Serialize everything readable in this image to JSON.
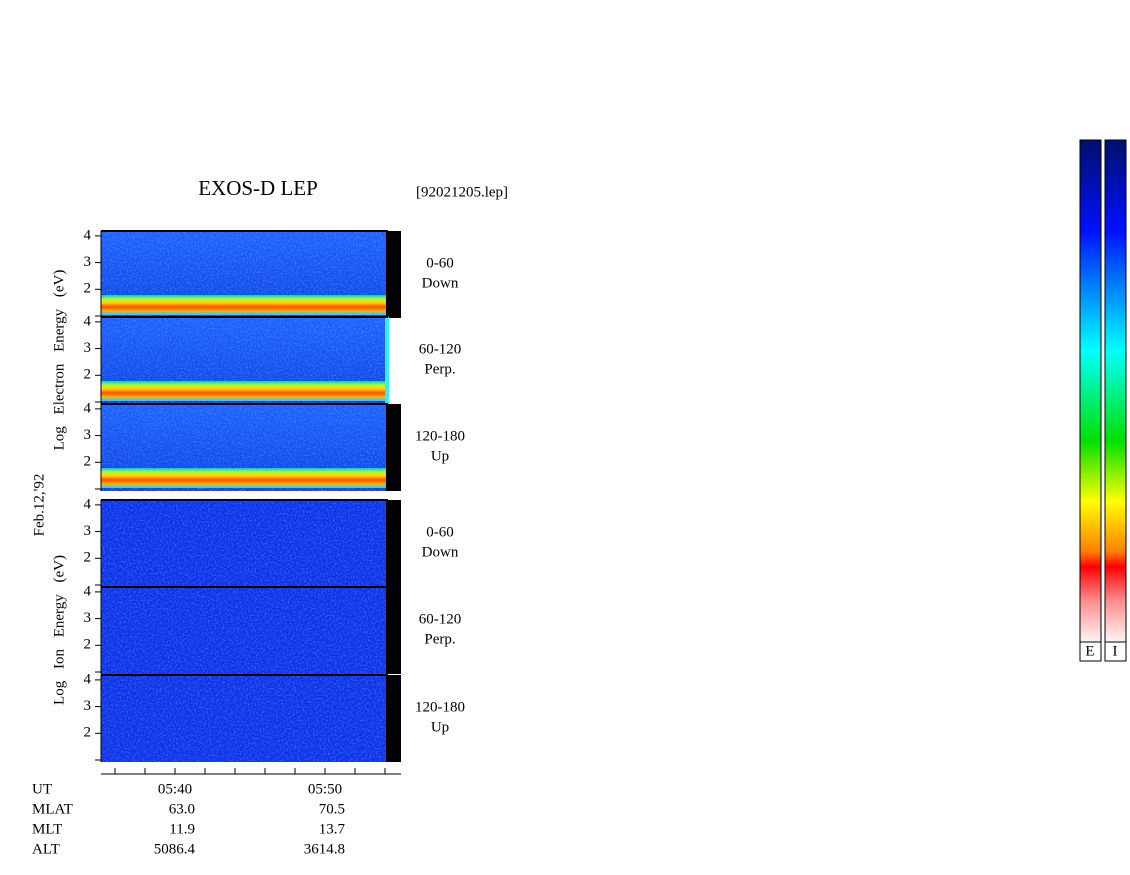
{
  "title": "EXOS-D LEP",
  "file": "[92021205.lep]",
  "date": "Feb.12,'92",
  "electron": {
    "axis_label": "Log Electron Energy (eV)",
    "panels": [
      {
        "range": "0-60",
        "direction": "Down"
      },
      {
        "range": "60-120",
        "direction": "Perp."
      },
      {
        "range": "120-180",
        "direction": "Up"
      }
    ]
  },
  "ion": {
    "axis_label": "Log Ion Energy (eV)",
    "panels": [
      {
        "range": "0-60",
        "direction": "Down"
      },
      {
        "range": "60-120",
        "direction": "Perp."
      },
      {
        "range": "120-180",
        "direction": "Up"
      }
    ]
  },
  "yticks": [
    2,
    3,
    4
  ],
  "footer": {
    "rows": [
      {
        "label": "UT",
        "values": [
          "05:40",
          "05:50"
        ]
      },
      {
        "label": "MLAT",
        "values": [
          "63.0",
          "70.5"
        ]
      },
      {
        "label": "MLT",
        "values": [
          "11.9",
          "13.7"
        ]
      },
      {
        "label": "ALT",
        "values": [
          "5086.4",
          "3614.8"
        ]
      }
    ]
  },
  "colorbar_labels": [
    "E",
    "I"
  ]
}
